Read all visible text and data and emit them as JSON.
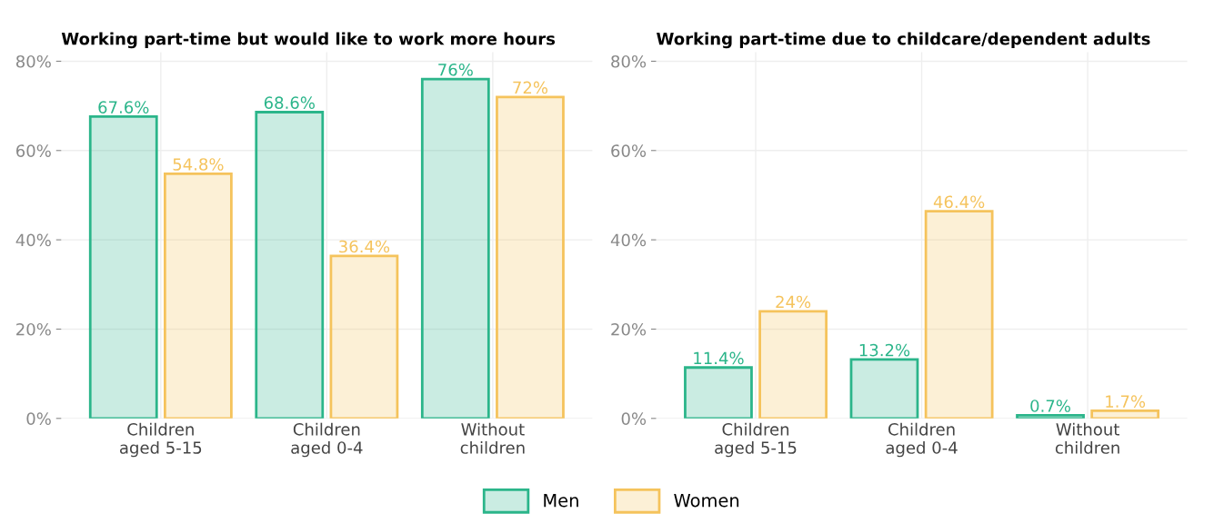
{
  "chart_data": [
    {
      "type": "bar",
      "title": "Working part-time but would like to work more hours",
      "categories": [
        "Children\naged 5-15",
        "Children\naged 0-4",
        "Without\nchildren"
      ],
      "series": [
        {
          "color": "#2bb58a",
          "values": [
            67.6,
            68.6,
            76
          ],
          "value_labels": [
            "67.6%",
            "68.6%",
            "76%"
          ]
        },
        {
          "color": "#f5c35c",
          "values": [
            54.8,
            36.4,
            72
          ],
          "value_labels": [
            "54.8%",
            "36.4%",
            "72%"
          ]
        }
      ],
      "ylim": [
        0,
        82
      ],
      "yticks": [
        {
          "value": 0,
          "label": "0%"
        },
        {
          "value": 20,
          "label": "20%"
        },
        {
          "value": 40,
          "label": "40%"
        },
        {
          "value": 60,
          "label": "60%"
        },
        {
          "value": 80,
          "label": "80%"
        }
      ],
      "grid": true
    },
    {
      "type": "bar",
      "title": "Working part-time due to childcare/dependent adults",
      "categories": [
        "Children\naged 5-15",
        "Children\naged 0-4",
        "Without\nchildren"
      ],
      "series": [
        {
          "name": "Men",
          "color": "#2bb58a",
          "values": [
            11.4,
            13.2,
            0.7
          ],
          "value_labels": [
            "11.4%",
            "13.2%",
            "0.7%"
          ]
        },
        {
          "name": "Women",
          "color": "#f5c35c",
          "values": [
            24,
            46.4,
            1.7
          ],
          "value_labels": [
            "24%",
            "46.4%",
            "1.7%"
          ]
        }
      ],
      "ylim": [
        0,
        82
      ],
      "yticks": [
        {
          "value": 0,
          "label": "0%"
        },
        {
          "value": 20,
          "label": "20%"
        },
        {
          "value": 40,
          "label": "40%"
        },
        {
          "value": 60,
          "label": "60%"
        },
        {
          "value": 80,
          "label": "80%"
        }
      ],
      "grid": true,
      "legend": "bottom"
    }
  ]
}
